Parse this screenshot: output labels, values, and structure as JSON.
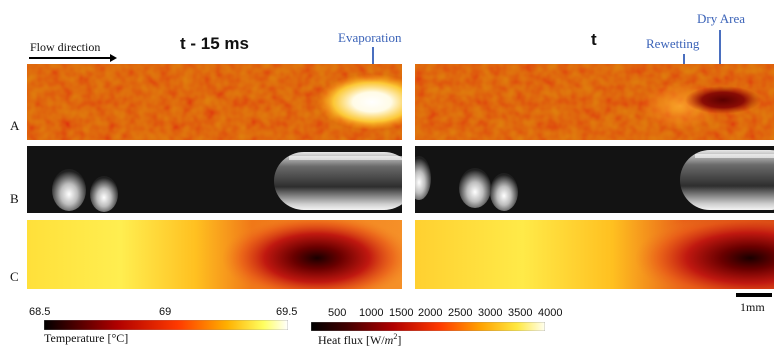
{
  "figure": {
    "flow_label": "Flow direction",
    "left_title": "t - 15 ms",
    "right_title": "t",
    "annotations": {
      "evaporation": "Evaporation",
      "dry_area": "Dry Area",
      "rewetting": "Rewetting"
    },
    "row_labels": [
      "A",
      "B",
      "C"
    ],
    "temperature_scale": {
      "ticks": [
        "68.5",
        "69",
        "69.5"
      ],
      "label": "Temperature [°C]"
    },
    "heatflux_scale": {
      "ticks": [
        "500",
        "1000",
        "1500",
        "2000",
        "2500",
        "3000",
        "3500",
        "4000"
      ],
      "label_main": "Heat flux [W/",
      "label_unit": "m",
      "label_exp": "2",
      "label_end": "]"
    },
    "scale_bar": "1mm"
  }
}
